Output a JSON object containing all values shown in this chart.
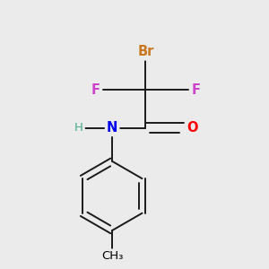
{
  "bg_color": "#ebebeb",
  "atom_colors": {
    "Br": "#c87820",
    "F": "#cc44cc",
    "O": "#ff0000",
    "N": "#0000ee",
    "H": "#44aa88",
    "C": "#000000",
    "CH3": "#000000"
  },
  "bond_color": "#1a1a1a",
  "figsize": [
    3.0,
    3.0
  ],
  "dpi": 100
}
